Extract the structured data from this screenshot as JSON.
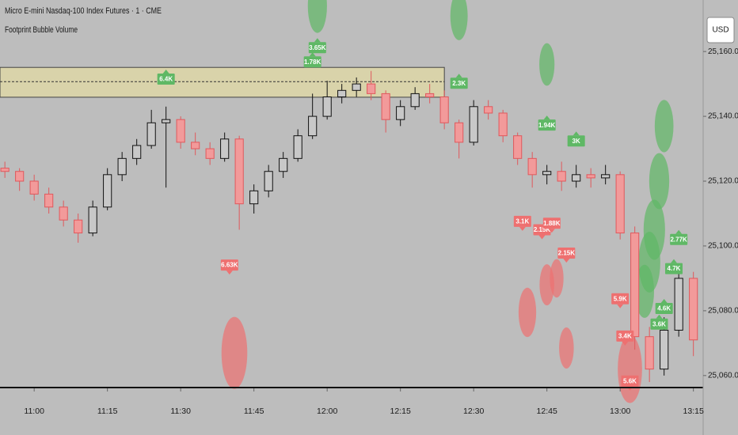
{
  "chart_data": {
    "type": "candlestick",
    "title": "Micro E-mini Nasdaq-100 Index Futures · 1 · CME",
    "subtitle": "Footprint Bubble Volume",
    "currency": "USD",
    "x": [
      "10:54",
      "10:57",
      "11:00",
      "11:03",
      "11:06",
      "11:09",
      "11:12",
      "11:15",
      "11:18",
      "11:21",
      "11:24",
      "11:27",
      "11:30",
      "11:33",
      "11:36",
      "11:39",
      "11:42",
      "11:45",
      "11:48",
      "11:51",
      "11:54",
      "11:57",
      "12:00",
      "12:03",
      "12:06",
      "12:09",
      "12:12",
      "12:15",
      "12:18",
      "12:21",
      "12:24",
      "12:27",
      "12:30",
      "12:33",
      "12:36",
      "12:39",
      "12:42",
      "12:45",
      "12:48",
      "12:51",
      "12:54",
      "12:57",
      "13:00",
      "13:03",
      "13:06",
      "13:09",
      "13:12",
      "13:15"
    ],
    "open": [
      25124,
      25123,
      25120,
      25116,
      25112,
      25108,
      25104,
      25112,
      25122,
      25127,
      25131,
      25138,
      25139,
      25132,
      25130,
      25127,
      25133,
      25113,
      25117,
      25123,
      25127,
      25134,
      25140,
      25146,
      25148,
      25150,
      25147,
      25139,
      25143,
      25147,
      25146,
      25138,
      25132,
      25143,
      25141,
      25134,
      25127,
      25122,
      25123,
      25120,
      25122,
      25121,
      25122,
      25104,
      25072,
      25062,
      25074,
      25090
    ],
    "high": [
      25126,
      25124,
      25122,
      25118,
      25114,
      25110,
      25114,
      25124,
      25129,
      25133,
      25142,
      25143,
      25140,
      25135,
      25132,
      25135,
      25134,
      25119,
      25125,
      25129,
      25136,
      25147,
      25151,
      25150,
      25152,
      25154,
      25148,
      25145,
      25149,
      25150,
      25148,
      25139,
      25145,
      25145,
      25142,
      25135,
      25129,
      25125,
      25126,
      25125,
      25124,
      25125,
      25123,
      25106,
      25075,
      25078,
      25094,
      25092
    ],
    "low": [
      25121,
      25117,
      25114,
      25110,
      25106,
      25101,
      25103,
      25111,
      25120,
      25125,
      25130,
      25118,
      25130,
      25128,
      25125,
      25126,
      25105,
      25110,
      25115,
      25121,
      25126,
      25133,
      25139,
      25144,
      25146,
      25145,
      25135,
      25137,
      25142,
      25144,
      25136,
      25127,
      25131,
      25139,
      25132,
      25125,
      25118,
      25119,
      25117,
      25118,
      25118,
      25119,
      25102,
      25068,
      25058,
      25060,
      25072,
      25066
    ],
    "close": [
      25123,
      25120,
      25116,
      25112,
      25108,
      25104,
      25112,
      25122,
      25127,
      25131,
      25138,
      25139,
      25132,
      25130,
      25127,
      25133,
      25113,
      25117,
      25123,
      25127,
      25134,
      25140,
      25146,
      25148,
      25150,
      25147,
      25139,
      25143,
      25147,
      25146,
      25138,
      25132,
      25143,
      25141,
      25134,
      25127,
      25122,
      25123,
      25120,
      25122,
      25121,
      25122,
      25104,
      25072,
      25062,
      25074,
      25090,
      25071
    ],
    "up_color": "#111111",
    "down_color": "#e0585c",
    "buy_color": "#5fb865",
    "sell_color": "#ee7070",
    "xlim": [
      "10:53",
      "13:17"
    ],
    "xticks": [
      "11:00",
      "11:15",
      "11:30",
      "11:45",
      "12:00",
      "12:15",
      "12:30",
      "12:45",
      "13:00",
      "13:15"
    ],
    "ylim": [
      25056.3,
      25175.9
    ],
    "yticks": [
      {
        "value": 25060,
        "label": "25,060.00"
      },
      {
        "value": 25080,
        "label": "25,080.00"
      },
      {
        "value": 25100,
        "label": "25,100.00"
      },
      {
        "value": 25120,
        "label": "25,120.00"
      },
      {
        "value": 25140,
        "label": "25,140.00"
      },
      {
        "value": 25160,
        "label": "25,160.00"
      }
    ],
    "zone": {
      "from": 25145.9,
      "to": 25155.1,
      "level": 25150.7,
      "end": "12:24"
    },
    "bubbles": [
      {
        "x": "11:58",
        "y": 25174,
        "volume": 3650,
        "side": "buy"
      },
      {
        "x": "12:27",
        "y": 25171,
        "volume": 3000,
        "side": "buy"
      },
      {
        "x": "12:45",
        "y": 25156,
        "volume": 2300,
        "side": "buy"
      },
      {
        "x": "13:09",
        "y": 25137,
        "volume": 3500,
        "side": "buy"
      },
      {
        "x": "13:08",
        "y": 25120,
        "volume": 4000,
        "side": "buy"
      },
      {
        "x": "13:07",
        "y": 25105,
        "volume": 4600,
        "side": "buy"
      },
      {
        "x": "13:06",
        "y": 25095,
        "volume": 4700,
        "side": "buy"
      },
      {
        "x": "13:05",
        "y": 25086,
        "volume": 3600,
        "side": "buy"
      },
      {
        "x": "11:41",
        "y": 25067,
        "volume": 6630,
        "side": "sell"
      },
      {
        "x": "12:41",
        "y": 25079.5,
        "volume": 3100,
        "side": "sell"
      },
      {
        "x": "12:45",
        "y": 25088,
        "volume": 2150,
        "side": "sell"
      },
      {
        "x": "12:47",
        "y": 25090,
        "volume": 1880,
        "side": "sell"
      },
      {
        "x": "12:49",
        "y": 25068.5,
        "volume": 2150,
        "side": "sell"
      },
      {
        "x": "13:02",
        "y": 25062,
        "volume": 5900,
        "side": "sell"
      }
    ],
    "labels": [
      {
        "x": "11:27",
        "y": 25151.5,
        "label": "6.4K",
        "side": "buy"
      },
      {
        "x": "11:57",
        "y": 25156.8,
        "label": "1.78K",
        "side": "buy"
      },
      {
        "x": "11:58",
        "y": 25161.2,
        "label": "3.65K",
        "side": "buy"
      },
      {
        "x": "12:27",
        "y": 25150.2,
        "label": "2.3K",
        "side": "buy"
      },
      {
        "x": "12:45",
        "y": 25137.3,
        "label": "1.94K",
        "side": "buy"
      },
      {
        "x": "12:51",
        "y": 25132.4,
        "label": "3K",
        "side": "buy"
      },
      {
        "x": "13:12",
        "y": 25102,
        "label": "2.77K",
        "side": "buy"
      },
      {
        "x": "13:11",
        "y": 25093,
        "label": "4.7K",
        "side": "buy"
      },
      {
        "x": "13:09",
        "y": 25080.7,
        "label": "4.6K",
        "side": "buy"
      },
      {
        "x": "13:08",
        "y": 25075.9,
        "label": "3.6K",
        "side": "buy"
      },
      {
        "x": "11:40",
        "y": 25094.1,
        "label": "6.63K",
        "side": "sell"
      },
      {
        "x": "12:40",
        "y": 25107.6,
        "label": "3.1K",
        "side": "sell"
      },
      {
        "x": "12:44",
        "y": 25105,
        "label": "2.15K",
        "side": "sell"
      },
      {
        "x": "12:46",
        "y": 25107,
        "label": "1.88K",
        "side": "sell"
      },
      {
        "x": "12:49",
        "y": 25097.8,
        "label": "2.15K",
        "side": "sell"
      },
      {
        "x": "13:00",
        "y": 25083.7,
        "label": "5.9K",
        "side": "sell"
      },
      {
        "x": "13:01",
        "y": 25072.2,
        "label": "3.4K",
        "side": "sell"
      },
      {
        "x": "13:02",
        "y": 25058.3,
        "label": "5.6K",
        "side": "sell"
      }
    ]
  }
}
